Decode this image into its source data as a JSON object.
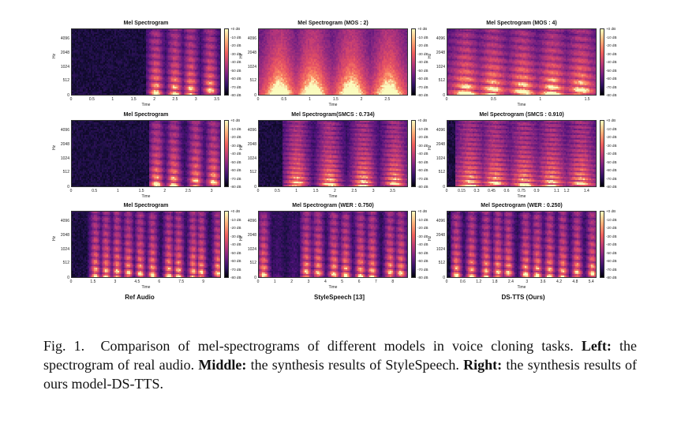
{
  "figure": {
    "colorbar_ticks": [
      "+0 dB",
      "-10 dB",
      "-20 dB",
      "-30 dB",
      "-40 dB",
      "-50 dB",
      "-60 dB",
      "-70 dB",
      "-80 dB"
    ],
    "ylabel": "Hz",
    "xlabel": "Time",
    "yticks": [
      "4096",
      "2048",
      "1024",
      "512",
      "0"
    ],
    "column_labels": [
      "Ref Audio",
      "StyleSpeech [13]",
      "DS-TTS (Ours)"
    ],
    "panels": [
      {
        "title": "Mel Spectrogram",
        "xticks": [
          "0",
          "0.5",
          "1",
          "1.5",
          "2",
          "2.5",
          "3",
          "3.5"
        ],
        "xmax": 3.6,
        "style": "speech-late",
        "onset": 0.5
      },
      {
        "title": "Mel Spectrogram (MOS : 2)",
        "xticks": [
          "0",
          "0.5",
          "1",
          "1.5",
          "2",
          "2.5"
        ],
        "xmax": 2.9,
        "style": "diffuse",
        "onset": 0.0
      },
      {
        "title": "Mel Spectrogram (MOS : 4)",
        "xticks": [
          "0",
          "0.5",
          "1",
          "1.5"
        ],
        "xmax": 1.6,
        "style": "dense",
        "onset": 0.0
      },
      {
        "title": "Mel Spectrogram",
        "xticks": [
          "0",
          "0.5",
          "1",
          "1.5",
          "2",
          "2.5",
          "3"
        ],
        "xmax": 3.2,
        "style": "speech-late",
        "onset": 0.52
      },
      {
        "title": "Mel Spectrogram(SMCS : 0.734)",
        "xticks": [
          "0",
          "0.5",
          "1",
          "1.5",
          "2",
          "2.5",
          "3",
          "3.5"
        ],
        "xmax": 3.9,
        "style": "harmonic",
        "onset": 0.15
      },
      {
        "title": "Mel Spectrogram (SMCS : 0.910)",
        "xticks": [
          "0",
          "0.15",
          "0.3",
          "0.45",
          "0.6",
          "0.75",
          "0.9",
          "1.1",
          "1.2",
          "1.4"
        ],
        "xmax": 1.5,
        "style": "dense-harm",
        "onset": 0.05
      },
      {
        "title": "Mel Spectrogram",
        "xticks": [
          "0",
          "1.5",
          "3",
          "4.5",
          "6",
          "7.5",
          "9"
        ],
        "xmax": 10.2,
        "style": "many",
        "onset": 0.1
      },
      {
        "title": "Mel Spectrogram (WER : 0.750)",
        "xticks": [
          "0",
          "1",
          "2",
          "3",
          "4",
          "5",
          "6",
          "7",
          "8"
        ],
        "xmax": 8.9,
        "style": "many-gap",
        "onset": 0.0
      },
      {
        "title": "Mel Spectrogram (WER : 0.250)",
        "xticks": [
          "0",
          "0.6",
          "1.2",
          "1.8",
          "2.4",
          "3",
          "3.6",
          "4.2",
          "4.8",
          "5.4"
        ],
        "xmax": 5.6,
        "style": "many",
        "onset": 0.02
      }
    ]
  },
  "caption": {
    "label": "Fig. 1.",
    "text1": "Comparison of mel-spectrograms of different models in voice cloning tasks.",
    "left_bold": "Left:",
    "left_text": "the spectrogram of real audio.",
    "middle_bold": "Middle:",
    "middle_text": "the synthesis results of StyleSpeech.",
    "right_bold": "Right:",
    "right_text": "the synthesis results of ours model-DS-TTS."
  }
}
